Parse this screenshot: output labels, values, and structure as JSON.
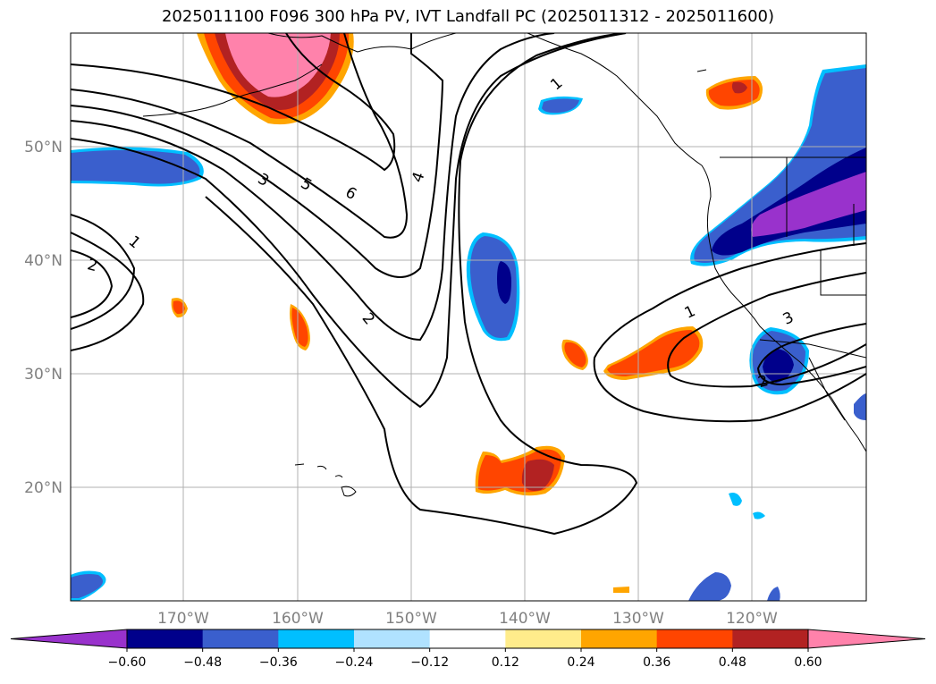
{
  "title": "2025011100 F096 300 hPa PV, IVT Landfall PC (2025011312 - 2025011600)",
  "axes": {
    "lat_labels": [
      "50°N",
      "40°N",
      "30°N",
      "20°N"
    ],
    "lon_labels": [
      "170°W",
      "160°W",
      "150°W",
      "140°W",
      "130°W",
      "120°W"
    ]
  },
  "contour_labels": [
    "1",
    "2",
    "3",
    "5",
    "6",
    "4",
    "2",
    "1",
    "1",
    "3",
    "2"
  ],
  "colorbar": {
    "tick_labels": [
      "−0.60",
      "−0.48",
      "−0.36",
      "−0.24",
      "−0.12",
      "0.12",
      "0.24",
      "0.36",
      "0.48",
      "0.60"
    ],
    "colors": [
      "#9932CC",
      "#00008B",
      "#3A5FCD",
      "#00BFFF",
      "#B0E2FF",
      "#FFFFFF",
      "#FFEC8B",
      "#FFA500",
      "#FF4500",
      "#B22222",
      "#FF82AB"
    ]
  },
  "chart_data": {
    "type": "map",
    "title": "2025011100 F096 300 hPa PV, IVT Landfall PC (2025011312 - 2025011600)",
    "projection": "lat-lon",
    "lon_range": [
      -180,
      -110
    ],
    "lat_range": [
      10,
      60
    ],
    "grid": true,
    "filled_field": {
      "levels": [
        -0.6,
        -0.48,
        -0.36,
        -0.24,
        -0.12,
        0.12,
        0.24,
        0.36,
        0.48,
        0.6
      ],
      "extend": "both"
    },
    "contour_field": {
      "levels": [
        1,
        2,
        3,
        4,
        5,
        6
      ],
      "labels_shown": [
        1,
        2,
        3,
        4,
        5,
        6
      ]
    }
  }
}
